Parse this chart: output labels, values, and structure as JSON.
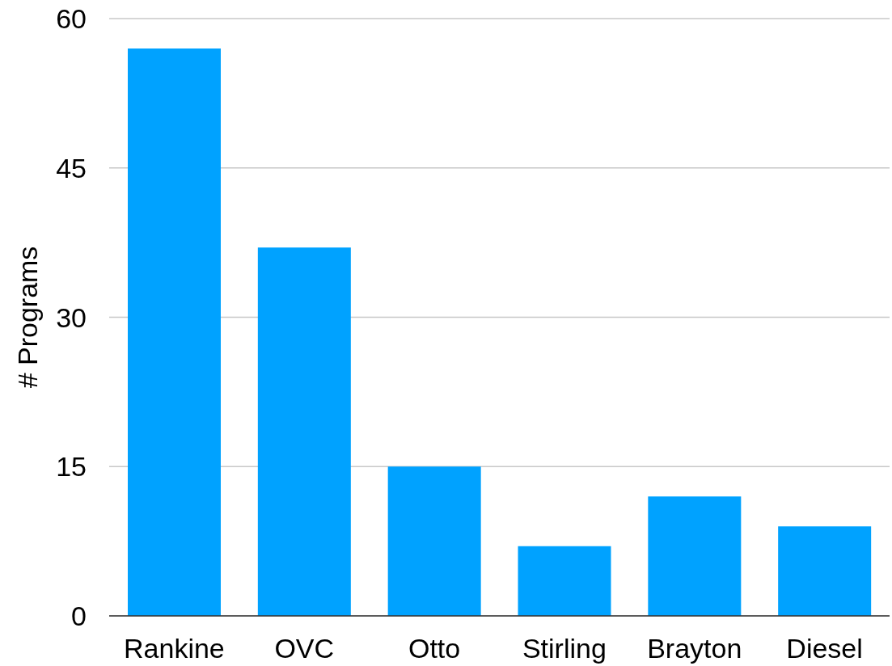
{
  "chart_data": {
    "type": "bar",
    "ylabel": "# Programs",
    "categories": [
      "Rankine",
      "OVC",
      "Otto",
      "Stirling",
      "Brayton",
      "Diesel"
    ],
    "values": [
      57,
      37,
      15,
      7,
      12,
      9
    ],
    "color": "#00a2ff",
    "ylim": [
      0,
      60
    ],
    "yticks": [
      0,
      15,
      30,
      45,
      60
    ],
    "grid": "y"
  }
}
